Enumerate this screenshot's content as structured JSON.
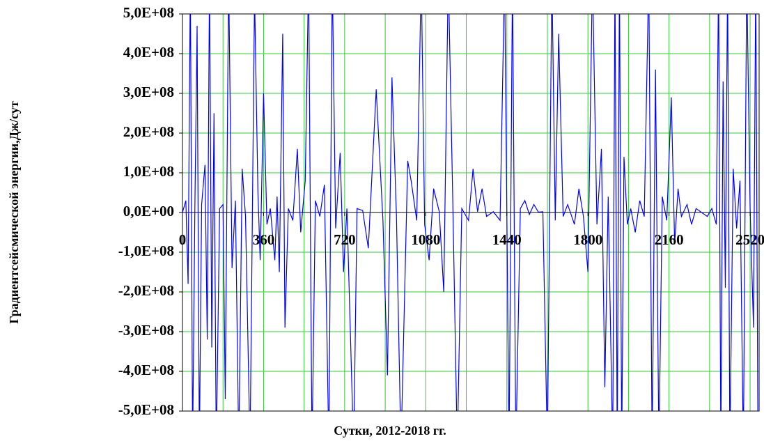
{
  "chart_data": {
    "type": "line",
    "y_label": "Градиентсейсмической энергии,Дж/сут",
    "x_label": "Сутки, 2012-2018 гг.",
    "color": "#0000ff",
    "grid": true,
    "xlim": [
      0,
      2560
    ],
    "xticks": [
      0,
      360,
      720,
      1080,
      1440,
      1800,
      2160,
      2520
    ],
    "xminorticks": [
      180,
      540,
      900,
      1260,
      1620,
      1980,
      2340
    ],
    "ylim": [
      -500000000.0,
      500000000.0
    ],
    "yticks": [
      {
        "value": -500000000.0,
        "label": "-5,0E+08"
      },
      {
        "value": -400000000.0,
        "label": "-4,0E+08"
      },
      {
        "value": -300000000.0,
        "label": "-3,0E+08"
      },
      {
        "value": -200000000.0,
        "label": "-2,0E+08"
      },
      {
        "value": -100000000.0,
        "label": "-1,0E+08"
      },
      {
        "value": 0,
        "label": "0,0E+00"
      },
      {
        "value": 100000000.0,
        "label": "1,0E+08"
      },
      {
        "value": 200000000.0,
        "label": "2,0E+08"
      },
      {
        "value": 300000000.0,
        "label": "3,0E+08"
      },
      {
        "value": 400000000.0,
        "label": "4,0E+08"
      },
      {
        "value": 500000000.0,
        "label": "5,0E+08"
      }
    ],
    "x": [
      0,
      15,
      25,
      35,
      45,
      55,
      65,
      75,
      85,
      100,
      110,
      120,
      130,
      140,
      150,
      165,
      180,
      190,
      205,
      220,
      235,
      250,
      265,
      280,
      300,
      320,
      335,
      345,
      360,
      375,
      390,
      410,
      420,
      430,
      445,
      455,
      470,
      490,
      510,
      525,
      545,
      560,
      575,
      590,
      610,
      630,
      650,
      665,
      680,
      700,
      715,
      730,
      760,
      775,
      800,
      825,
      860,
      890,
      910,
      930,
      950,
      970,
      1000,
      1015,
      1040,
      1060,
      1075,
      1095,
      1115,
      1140,
      1160,
      1180,
      1200,
      1220,
      1240,
      1270,
      1290,
      1310,
      1330,
      1350,
      1380,
      1410,
      1430,
      1450,
      1465,
      1480,
      1500,
      1520,
      1540,
      1560,
      1580,
      1600,
      1620,
      1640,
      1655,
      1670,
      1690,
      1710,
      1740,
      1760,
      1780,
      1800,
      1820,
      1840,
      1860,
      1875,
      1890,
      1910,
      1920,
      1930,
      1940,
      1950,
      1960,
      1975,
      1990,
      2010,
      2030,
      2050,
      2070,
      2085,
      2100,
      2115,
      2130,
      2150,
      2170,
      2185,
      2200,
      2215,
      2240,
      2260,
      2280,
      2300,
      2330,
      2350,
      2370,
      2380,
      2390,
      2400,
      2410,
      2420,
      2430,
      2445,
      2460,
      2475,
      2490,
      2505,
      2520,
      2535,
      2545,
      2555
    ],
    "values": [
      0,
      30000000.0,
      -180000000.0,
      600000000.0,
      -600000000.0,
      10000000.0,
      470000000.0,
      -600000000.0,
      20000000.0,
      120000000.0,
      -320000000.0,
      600000000.0,
      -340000000.0,
      250000000.0,
      -600000000.0,
      10000000.0,
      20000000.0,
      -470000000.0,
      600000000.0,
      -140000000.0,
      30000000.0,
      -600000000.0,
      110000000.0,
      -10000000.0,
      -600000000.0,
      550000000.0,
      50000000.0,
      -120000000.0,
      300000000.0,
      -30000000.0,
      10000000.0,
      -120000000.0,
      40000000.0,
      -150000000.0,
      450000000.0,
      -290000000.0,
      10000000.0,
      -20000000.0,
      160000000.0,
      -50000000.0,
      80000000.0,
      600000000.0,
      -600000000.0,
      30000000.0,
      -10000000.0,
      70000000.0,
      -600000000.0,
      600000000.0,
      -40000000.0,
      150000000.0,
      -150000000.0,
      10000000.0,
      -600000000.0,
      10000000.0,
      5000000.0,
      -90000000.0,
      310000000.0,
      -20000000.0,
      -410000000.0,
      340000000.0,
      -10000000.0,
      -600000000.0,
      130000000.0,
      80000000.0,
      -20000000.0,
      600000000.0,
      -30000000.0,
      -120000000.0,
      60000000.0,
      2000000.0,
      -200000000.0,
      600000000.0,
      30000000.0,
      -600000000.0,
      10000000.0,
      -20000000.0,
      110000000.0,
      2000000.0,
      60000000.0,
      -10000000.0,
      2000000.0,
      -20000000.0,
      600000000.0,
      -600000000.0,
      600000000.0,
      -600000000.0,
      10000000.0,
      30000000.0,
      -5000000.0,
      20000000.0,
      1000000.0,
      2000000.0,
      -600000000.0,
      600000000.0,
      -20000000.0,
      450000000.0,
      -10000000.0,
      20000000.0,
      -30000000.0,
      60000000.0,
      -10000000.0,
      -150000000.0,
      600000000.0,
      -30000000.0,
      160000000.0,
      -440000000.0,
      40000000.0,
      -600000000.0,
      600000000.0,
      -600000000.0,
      600000000.0,
      -600000000.0,
      140000000.0,
      -30000000.0,
      10000000.0,
      -50000000.0,
      30000000.0,
      -10000000.0,
      600000000.0,
      -600000000.0,
      360000000.0,
      -600000000.0,
      40000000.0,
      -20000000.0,
      290000000.0,
      -80000000.0,
      60000000.0,
      -10000000.0,
      20000000.0,
      -30000000.0,
      10000000.0,
      2000000.0,
      -10000000.0,
      10000000.0,
      -30000000.0,
      600000000.0,
      -600000000.0,
      330000000.0,
      -190000000.0,
      600000000.0,
      -600000000.0,
      110000000.0,
      -40000000.0,
      80000000.0,
      -600000000.0,
      600000000.0,
      10000000.0,
      -290000000.0,
      600000000.0,
      -600000000.0
    ]
  }
}
